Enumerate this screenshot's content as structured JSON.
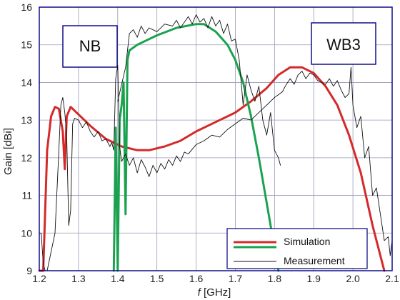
{
  "chart_data": {
    "type": "line",
    "xlabel_italic": "f",
    "xlabel_rest": " [GHz]",
    "ylabel": "Gain [dBi]",
    "xlim": [
      1.2,
      2.1
    ],
    "ylim": [
      9,
      16
    ],
    "xticks": [
      "1.2",
      "1.3",
      "1.4",
      "1.5",
      "1.6",
      "1.7",
      "1.8",
      "1.9",
      "2.0",
      "2.1"
    ],
    "yticks": [
      "9",
      "10",
      "11",
      "12",
      "13",
      "14",
      "15",
      "16"
    ],
    "grid": true,
    "legend_position": "bottom-right",
    "annotations": [
      "NB",
      "WB3"
    ],
    "series": [
      {
        "name": "Simulation",
        "color": "#d42a2a",
        "points": [
          [
            1.2,
            9.0
          ],
          [
            1.21,
            9.0
          ],
          [
            1.22,
            12.2
          ],
          [
            1.23,
            13.1
          ],
          [
            1.24,
            13.35
          ],
          [
            1.25,
            13.3
          ],
          [
            1.26,
            12.7
          ],
          [
            1.265,
            11.7
          ],
          [
            1.27,
            13.1
          ],
          [
            1.28,
            13.35
          ],
          [
            1.3,
            13.15
          ],
          [
            1.33,
            12.85
          ],
          [
            1.37,
            12.5
          ],
          [
            1.41,
            12.3
          ],
          [
            1.45,
            12.2
          ],
          [
            1.48,
            12.2
          ],
          [
            1.52,
            12.3
          ],
          [
            1.56,
            12.45
          ],
          [
            1.6,
            12.7
          ],
          [
            1.65,
            12.95
          ],
          [
            1.7,
            13.2
          ],
          [
            1.74,
            13.5
          ],
          [
            1.78,
            13.85
          ],
          [
            1.81,
            14.2
          ],
          [
            1.84,
            14.4
          ],
          [
            1.87,
            14.4
          ],
          [
            1.9,
            14.25
          ],
          [
            1.93,
            13.9
          ],
          [
            1.96,
            13.4
          ],
          [
            1.99,
            12.6
          ],
          [
            2.02,
            11.6
          ],
          [
            2.05,
            10.2
          ],
          [
            2.08,
            9.0
          ]
        ]
      },
      {
        "name": "",
        "color": "#1aa24f",
        "points": [
          [
            1.39,
            9.0
          ],
          [
            1.395,
            12.8
          ],
          [
            1.4,
            9.0
          ],
          [
            1.405,
            13.0
          ],
          [
            1.41,
            13.4
          ],
          [
            1.415,
            14.0
          ],
          [
            1.42,
            10.5
          ],
          [
            1.425,
            14.6
          ],
          [
            1.43,
            14.85
          ],
          [
            1.45,
            15.0
          ],
          [
            1.5,
            15.25
          ],
          [
            1.55,
            15.45
          ],
          [
            1.6,
            15.55
          ],
          [
            1.62,
            15.55
          ],
          [
            1.65,
            15.35
          ],
          [
            1.68,
            15.0
          ],
          [
            1.7,
            14.6
          ],
          [
            1.72,
            14.0
          ],
          [
            1.74,
            13.1
          ],
          [
            1.76,
            12.0
          ],
          [
            1.78,
            10.8
          ],
          [
            1.8,
            9.6
          ],
          [
            1.81,
            9.0
          ]
        ]
      },
      {
        "name": "Measurement",
        "color": "#111111",
        "points": [
          [
            1.2,
            10.0
          ],
          [
            1.205,
            10.0
          ],
          [
            1.21,
            9.2
          ],
          [
            1.215,
            9.0
          ],
          [
            1.22,
            9.0
          ],
          [
            1.24,
            10.0
          ],
          [
            1.25,
            12.2
          ],
          [
            1.255,
            13.4
          ],
          [
            1.26,
            13.6
          ],
          [
            1.265,
            13.2
          ],
          [
            1.27,
            12.6
          ],
          [
            1.275,
            10.2
          ],
          [
            1.28,
            10.6
          ],
          [
            1.285,
            12.9
          ],
          [
            1.29,
            13.05
          ],
          [
            1.3,
            13.0
          ],
          [
            1.31,
            12.8
          ],
          [
            1.32,
            12.95
          ],
          [
            1.33,
            12.7
          ],
          [
            1.34,
            12.55
          ],
          [
            1.35,
            12.7
          ],
          [
            1.36,
            12.45
          ],
          [
            1.37,
            12.5
          ],
          [
            1.38,
            12.3
          ],
          [
            1.385,
            12.4
          ],
          [
            1.39,
            12.2
          ],
          [
            1.395,
            14.1
          ],
          [
            1.4,
            14.45
          ],
          [
            1.405,
            12.3
          ],
          [
            1.41,
            11.9
          ],
          [
            1.42,
            12.1
          ],
          [
            1.43,
            11.8
          ],
          [
            1.44,
            12.0
          ],
          [
            1.45,
            11.6
          ],
          [
            1.46,
            11.95
          ],
          [
            1.47,
            11.75
          ],
          [
            1.48,
            11.5
          ],
          [
            1.49,
            11.8
          ],
          [
            1.5,
            11.6
          ],
          [
            1.51,
            11.85
          ],
          [
            1.52,
            11.7
          ],
          [
            1.53,
            11.95
          ],
          [
            1.54,
            11.8
          ],
          [
            1.55,
            12.05
          ],
          [
            1.56,
            11.9
          ],
          [
            1.57,
            12.15
          ],
          [
            1.58,
            12.1
          ],
          [
            1.6,
            12.35
          ],
          [
            1.62,
            12.45
          ],
          [
            1.64,
            12.6
          ],
          [
            1.66,
            12.55
          ],
          [
            1.68,
            12.75
          ],
          [
            1.7,
            12.9
          ],
          [
            1.72,
            13.05
          ],
          [
            1.74,
            13.0
          ],
          [
            1.76,
            13.2
          ],
          [
            1.78,
            13.4
          ],
          [
            1.8,
            13.6
          ],
          [
            1.82,
            13.75
          ],
          [
            1.83,
            13.95
          ],
          [
            1.84,
            14.1
          ],
          [
            1.85,
            13.95
          ],
          [
            1.86,
            14.2
          ],
          [
            1.87,
            14.3
          ],
          [
            1.88,
            14.1
          ],
          [
            1.89,
            14.25
          ],
          [
            1.9,
            14.2
          ],
          [
            1.91,
            14.05
          ],
          [
            1.92,
            14.0
          ],
          [
            1.93,
            13.95
          ],
          [
            1.94,
            14.1
          ],
          [
            1.95,
            13.9
          ],
          [
            1.96,
            14.05
          ],
          [
            1.97,
            13.8
          ],
          [
            1.98,
            13.6
          ],
          [
            1.99,
            13.7
          ],
          [
            1.995,
            14.4
          ],
          [
            2.0,
            13.4
          ],
          [
            2.01,
            12.8
          ],
          [
            2.02,
            13.1
          ],
          [
            2.03,
            12.0
          ],
          [
            2.04,
            12.3
          ],
          [
            2.05,
            11.0
          ],
          [
            2.06,
            11.2
          ],
          [
            2.07,
            10.5
          ],
          [
            2.08,
            9.8
          ],
          [
            2.09,
            9.9
          ],
          [
            2.095,
            9.4
          ],
          [
            2.1,
            9.8
          ]
        ]
      },
      {
        "name": "",
        "color": "#111111",
        "points": [
          [
            1.4,
            13.5
          ],
          [
            1.42,
            14.4
          ],
          [
            1.43,
            15.3
          ],
          [
            1.44,
            15.4
          ],
          [
            1.45,
            15.2
          ],
          [
            1.46,
            15.5
          ],
          [
            1.47,
            15.3
          ],
          [
            1.48,
            15.45
          ],
          [
            1.5,
            15.35
          ],
          [
            1.52,
            15.55
          ],
          [
            1.54,
            15.5
          ],
          [
            1.55,
            15.65
          ],
          [
            1.56,
            15.45
          ],
          [
            1.57,
            15.6
          ],
          [
            1.58,
            15.75
          ],
          [
            1.59,
            15.55
          ],
          [
            1.6,
            15.8
          ],
          [
            1.61,
            15.6
          ],
          [
            1.62,
            15.7
          ],
          [
            1.63,
            15.45
          ],
          [
            1.64,
            15.75
          ],
          [
            1.65,
            15.5
          ],
          [
            1.66,
            15.65
          ],
          [
            1.67,
            15.3
          ],
          [
            1.68,
            15.55
          ],
          [
            1.69,
            15.1
          ],
          [
            1.7,
            15.15
          ],
          [
            1.71,
            14.6
          ],
          [
            1.72,
            13.4
          ],
          [
            1.73,
            14.2
          ],
          [
            1.74,
            13.8
          ],
          [
            1.75,
            13.5
          ],
          [
            1.76,
            13.9
          ],
          [
            1.77,
            13.0
          ],
          [
            1.78,
            12.6
          ],
          [
            1.79,
            13.2
          ],
          [
            1.8,
            12.2
          ],
          [
            1.81,
            12.0
          ],
          [
            1.815,
            11.8
          ]
        ]
      }
    ]
  }
}
